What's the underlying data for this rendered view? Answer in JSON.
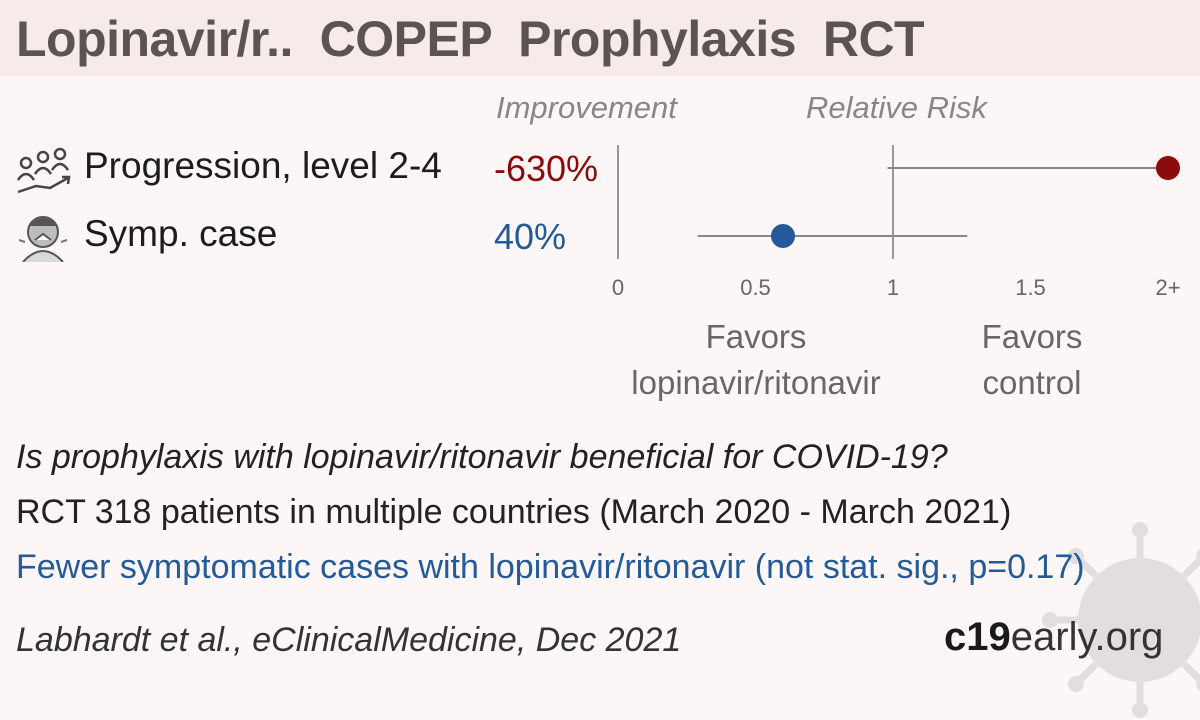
{
  "header": {
    "title": "Lopinavir/r..  COPEP  Prophylaxis  RCT"
  },
  "columns": {
    "improvement": "Improvement",
    "relative_risk": "Relative Risk"
  },
  "rows": [
    {
      "icon": "progression-people-icon",
      "label": "Progression, level 2-4",
      "improvement": "-630%",
      "color": "#8b0a0a"
    },
    {
      "icon": "sneezing-person-icon",
      "label": "Symp. case",
      "improvement": "40%",
      "color": "#235a99"
    }
  ],
  "chart_data": {
    "type": "forest",
    "x_axis": {
      "ticks": [
        "0",
        "0.5",
        "1",
        "1.5",
        "2+"
      ],
      "range": [
        0,
        2
      ],
      "reference_line": 1
    },
    "series": [
      {
        "name": "Progression, level 2-4",
        "rr": 2.0,
        "ci_low": 0.98,
        "ci_high": 2.0,
        "color": "#8b0a0a"
      },
      {
        "name": "Symp. case",
        "rr": 0.6,
        "ci_low": 0.29,
        "ci_high": 1.27,
        "color": "#235a99"
      }
    ],
    "favors_left": [
      "Favors",
      "lopinavir/ritonavir"
    ],
    "favors_right": [
      "Favors",
      "control"
    ]
  },
  "text": {
    "question": "Is prophylaxis with lopinavir/ritonavir beneficial for COVID-19?",
    "study": "RCT 318 patients in multiple countries (March 2020 - March 2021)",
    "result": "Fewer symptomatic cases with lopinavir/ritonavir (not stat. sig., p=0.17)",
    "citation": "Labhardt et al., eClinicalMedicine, Dec 2021"
  },
  "brand": {
    "bold": "c19",
    "light": "early.org"
  }
}
